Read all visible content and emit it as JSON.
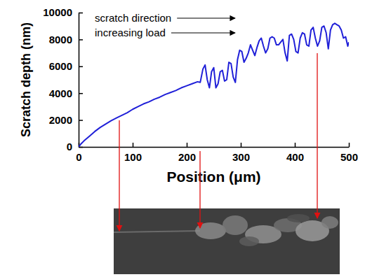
{
  "chart_data": {
    "type": "line",
    "x_label": "Position (μm)",
    "y_label": "Scratch depth (nm)",
    "annotations": [
      "scratch direction",
      "increasing load"
    ],
    "color": "#2020d8",
    "xlim": [
      0,
      500
    ],
    "xticks": [
      0,
      100,
      200,
      300,
      400,
      500
    ],
    "ylim": [
      0,
      10000
    ],
    "yticks": [
      0,
      2000,
      4000,
      6000,
      8000,
      10000
    ],
    "x": [
      0,
      5,
      10,
      20,
      30,
      40,
      50,
      60,
      70,
      80,
      90,
      100,
      110,
      120,
      130,
      140,
      150,
      160,
      170,
      180,
      190,
      200,
      210,
      220,
      225,
      230,
      234,
      238,
      242,
      246,
      250,
      254,
      258,
      262,
      266,
      270,
      274,
      278,
      282,
      286,
      290,
      294,
      298,
      302,
      306,
      310,
      314,
      318,
      322,
      326,
      330,
      334,
      338,
      342,
      346,
      350,
      354,
      358,
      362,
      366,
      370,
      374,
      378,
      382,
      386,
      390,
      394,
      398,
      402,
      406,
      410,
      414,
      418,
      422,
      426,
      430,
      434,
      438,
      442,
      446,
      450,
      454,
      458,
      462,
      466,
      470,
      474,
      478,
      482,
      486,
      490,
      494,
      498,
      500
    ],
    "values": [
      0,
      250,
      450,
      800,
      1150,
      1450,
      1700,
      1950,
      2150,
      2350,
      2550,
      2800,
      3000,
      3200,
      3350,
      3550,
      3700,
      3900,
      4050,
      4200,
      4400,
      4550,
      4700,
      4850,
      4800,
      5800,
      6100,
      5000,
      4400,
      5600,
      5900,
      4400,
      4700,
      5600,
      5700,
      4900,
      5000,
      6300,
      6200,
      5200,
      4800,
      6500,
      7200,
      7100,
      6300,
      6600,
      7000,
      7600,
      7200,
      6800,
      7400,
      7900,
      8100,
      7500,
      7000,
      7300,
      8100,
      8200,
      8100,
      7600,
      7600,
      7800,
      8000,
      7000,
      6400,
      8300,
      8400,
      8000,
      7100,
      7000,
      8100,
      8500,
      8400,
      7600,
      7500,
      8700,
      8900,
      8100,
      7500,
      7900,
      8900,
      9000,
      8500,
      7300,
      8700,
      9100,
      9200,
      9100,
      9000,
      8700,
      8100,
      8200,
      7500,
      7800
    ]
  }
}
